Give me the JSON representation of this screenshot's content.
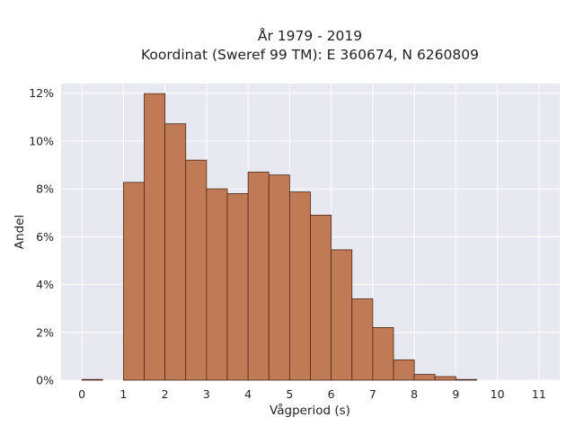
{
  "chart_data": {
    "type": "bar",
    "title_lines": [
      "År 1979 - 2019",
      "Koordinat (Sweref 99 TM): E 360674, N 6260809"
    ],
    "xlabel": "Vågperiod (s)",
    "ylabel": "Andel",
    "bin_width": 0.5,
    "bin_starts": [
      0,
      0.5,
      1,
      1.5,
      2,
      2.5,
      3,
      3.5,
      4,
      4.5,
      5,
      5.5,
      6,
      6.5,
      7,
      7.5,
      8,
      8.5,
      9,
      9.5,
      10,
      10.5,
      11
    ],
    "values": [
      0.03,
      0,
      8.27,
      11.98,
      10.72,
      9.2,
      8.0,
      7.8,
      8.7,
      8.58,
      7.87,
      6.9,
      5.45,
      3.4,
      2.2,
      0.85,
      0.24,
      0.15,
      0.03,
      0,
      0,
      0,
      0
    ],
    "xlim": [
      -0.5,
      11.5
    ],
    "ylim": [
      0,
      12.4
    ],
    "xticks": [
      0,
      1,
      2,
      3,
      4,
      5,
      6,
      7,
      8,
      9,
      10,
      11
    ],
    "xtick_labels": [
      "0",
      "1",
      "2",
      "3",
      "4",
      "5",
      "6",
      "7",
      "8",
      "9",
      "10",
      "11"
    ],
    "yticks": [
      0,
      2,
      4,
      6,
      8,
      10,
      12
    ],
    "ytick_labels": [
      "0%",
      "2%",
      "4%",
      "6%",
      "8%",
      "10%",
      "12%"
    ],
    "grid": true,
    "colors": {
      "bar_fill": "#c07a56",
      "bar_edge": "#4a2a1a",
      "plot_bg": "#e8e8f0",
      "grid": "#ffffff",
      "text": "#222222"
    }
  }
}
